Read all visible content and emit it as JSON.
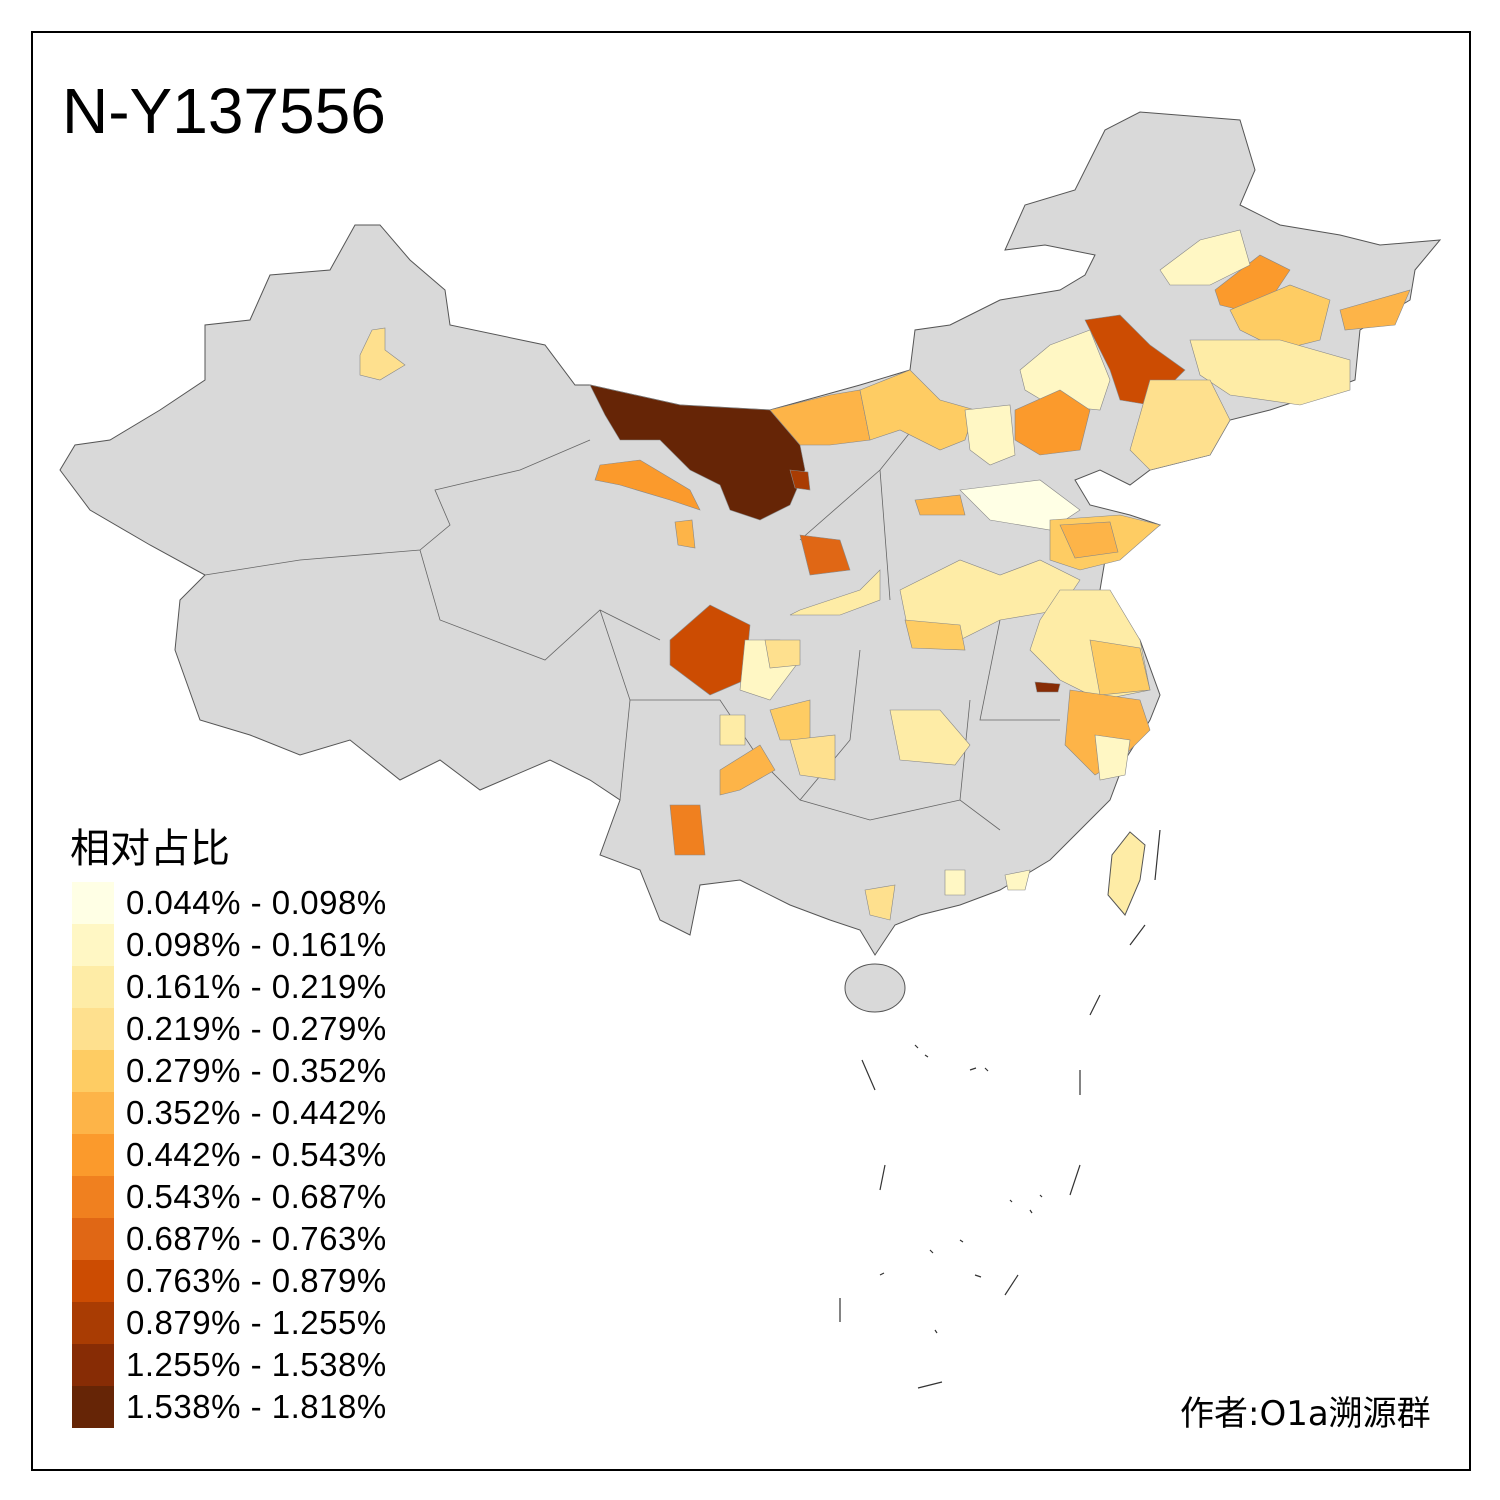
{
  "title": "N-Y137556",
  "legend": {
    "title": "相对占比",
    "bins": [
      {
        "label": "0.044% - 0.098%",
        "color": "#FFFFE5"
      },
      {
        "label": "0.098% - 0.161%",
        "color": "#FFF7C4"
      },
      {
        "label": "0.161% - 0.219%",
        "color": "#FEECA6"
      },
      {
        "label": "0.219% - 0.279%",
        "color": "#FEE08E"
      },
      {
        "label": "0.279% - 0.352%",
        "color": "#FECC63"
      },
      {
        "label": "0.352% - 0.442%",
        "color": "#FDB448"
      },
      {
        "label": "0.442% - 0.543%",
        "color": "#FB9A2C"
      },
      {
        "label": "0.543% - 0.687%",
        "color": "#F0801F"
      },
      {
        "label": "0.687% - 0.763%",
        "color": "#E06715"
      },
      {
        "label": "0.763% - 0.879%",
        "color": "#CC4C02"
      },
      {
        "label": "0.879% - 1.255%",
        "color": "#A93C03"
      },
      {
        "label": "1.255% - 1.538%",
        "color": "#872C05"
      },
      {
        "label": "1.538% - 1.818%",
        "color": "#662506"
      }
    ]
  },
  "map": {
    "no_data_color": "#D9D9D9",
    "region_levels": [
      12,
      6,
      5,
      5,
      4,
      10,
      8,
      9,
      7,
      5,
      9,
      1,
      6,
      4,
      5,
      1,
      2,
      3,
      6,
      1,
      0,
      5,
      4,
      5,
      2,
      4,
      2,
      4,
      5,
      1,
      11,
      2,
      4,
      3,
      1,
      2,
      3,
      3,
      1,
      1,
      2,
      3
    ]
  },
  "caption": "作者:O1a溯源群"
}
